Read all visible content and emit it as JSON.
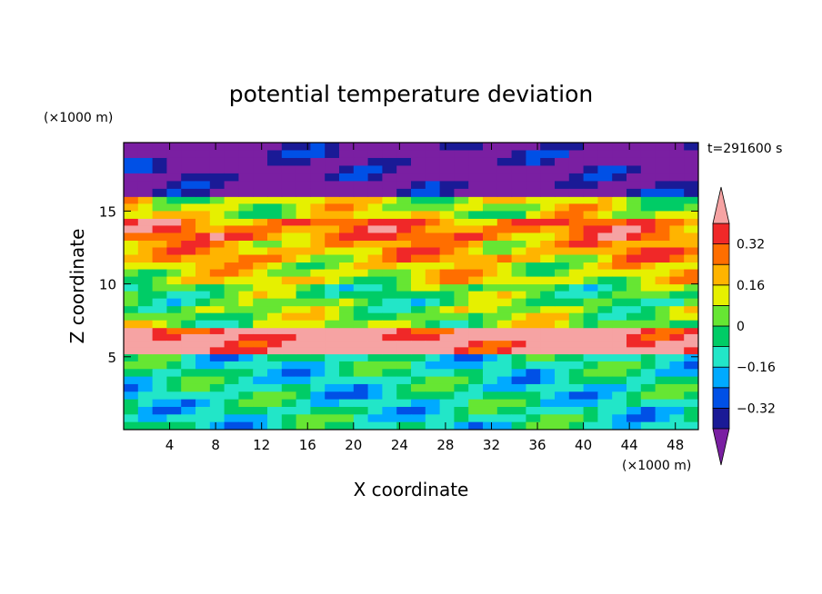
{
  "chart_data": {
    "type": "heatmap",
    "title": "potential temperature deviation",
    "xlabel": "X coordinate",
    "ylabel": "Z coordinate",
    "x_unit": "(×1000 m)",
    "y_unit": "(×1000 m)",
    "time_label": "t=291600 s",
    "xlim": [
      0,
      50
    ],
    "ylim": [
      0,
      19.7
    ],
    "x_ticks": [
      4,
      8,
      12,
      16,
      20,
      24,
      28,
      32,
      36,
      40,
      44,
      48
    ],
    "y_ticks": [
      5,
      10,
      15
    ],
    "colorbar": {
      "levels": [
        -0.4,
        -0.32,
        -0.24,
        -0.16,
        -0.08,
        0,
        0.08,
        0.16,
        0.24,
        0.32,
        0.4
      ],
      "tick_labels": [
        "0.32",
        "0.16",
        "0",
        "−0.16",
        "−0.32"
      ],
      "tick_values": [
        0.32,
        0.16,
        0,
        -0.16,
        -0.32
      ],
      "under_color": "#7a1fa2",
      "over_color": "#f6a3a3",
      "colors": [
        "#1a1a96",
        "#0050e6",
        "#00aaff",
        "#22e6c8",
        "#00cc66",
        "#66e633",
        "#e6f000",
        "#ffb400",
        "#ff6e00",
        "#f02828"
      ]
    },
    "bands": [
      {
        "z": [
          0,
          5.2
        ],
        "value": -0.1
      },
      {
        "z": [
          5.2,
          7.0
        ],
        "value": 0.45
      },
      {
        "z": [
          7.0,
          8.5
        ],
        "value": 0.05
      },
      {
        "z": [
          8.5,
          10.0
        ],
        "value": 0.0
      },
      {
        "z": [
          10.0,
          11.5
        ],
        "value": 0.12
      },
      {
        "z": [
          11.5,
          13.0
        ],
        "value": 0.2
      },
      {
        "z": [
          13.0,
          14.5
        ],
        "value": 0.28
      },
      {
        "z": [
          14.5,
          16.0
        ],
        "value": 0.1
      },
      {
        "z": [
          16.0,
          19.7
        ],
        "value": -0.45
      }
    ]
  }
}
